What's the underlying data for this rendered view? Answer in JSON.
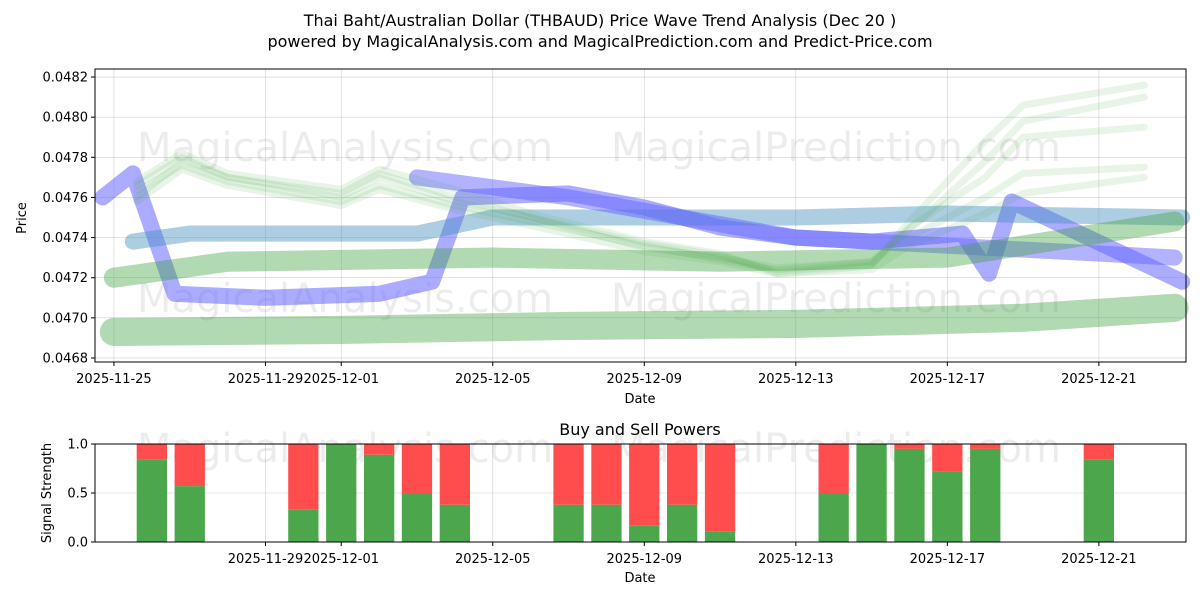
{
  "figure": {
    "title_line1": "Thai Baht/Australian Dollar (THBAUD) Price Wave Trend Analysis (Dec 20 )",
    "title_line2": "powered by MagicalAnalysis.com and MagicalPrediction.com and Predict-Price.com",
    "watermarks": [
      "MagicalAnalysis.com",
      "MagicalPrediction.com"
    ]
  },
  "chart_data": [
    {
      "type": "area",
      "title": "Thai Baht/Australian Dollar (THBAUD) Price Wave Trend Analysis (Dec 20 )",
      "xlabel": "Date",
      "ylabel": "Price",
      "x_range_day": [
        -0.5,
        28.3
      ],
      "ylim": [
        0.04678,
        0.04824
      ],
      "x_ticks": [
        {
          "day": 0,
          "label": "2025-11-25"
        },
        {
          "day": 4,
          "label": "2025-11-29"
        },
        {
          "day": 6,
          "label": "2025-12-01"
        },
        {
          "day": 10,
          "label": "2025-12-05"
        },
        {
          "day": 14,
          "label": "2025-12-09"
        },
        {
          "day": 18,
          "label": "2025-12-13"
        },
        {
          "day": 22,
          "label": "2025-12-17"
        },
        {
          "day": 26,
          "label": "2025-12-21"
        }
      ],
      "y_ticks": [
        {
          "value": 0.0468,
          "label": "0.0468"
        },
        {
          "value": 0.047,
          "label": "0.0470"
        },
        {
          "value": 0.0472,
          "label": "0.0472"
        },
        {
          "value": 0.0474,
          "label": "0.0474"
        },
        {
          "value": 0.0476,
          "label": "0.0476"
        },
        {
          "value": 0.0478,
          "label": "0.0478"
        },
        {
          "value": 0.048,
          "label": "0.0480"
        },
        {
          "value": 0.0482,
          "label": "0.0482"
        }
      ],
      "grid": true,
      "series": [
        {
          "name": "price-wave",
          "color": "#6666ff",
          "opacity": 0.55,
          "width_price": 8e-05,
          "points": [
            [
              -0.3,
              0.0476
            ],
            [
              0.5,
              0.04772
            ],
            [
              1.6,
              0.04712
            ],
            [
              4,
              0.0471
            ],
            [
              7,
              0.04712
            ],
            [
              8.4,
              0.04718
            ],
            [
              9.2,
              0.0476
            ],
            [
              12,
              0.04762
            ],
            [
              14,
              0.04755
            ],
            [
              16,
              0.04745
            ],
            [
              18,
              0.0474
            ],
            [
              20,
              0.04738
            ],
            [
              22.4,
              0.04742
            ],
            [
              23.1,
              0.04722
            ],
            [
              23.7,
              0.04758
            ],
            [
              28.2,
              0.04718
            ]
          ]
        },
        {
          "name": "long-trend",
          "color": "#4a90c0",
          "opacity": 0.45,
          "width_price": 8e-05,
          "points": [
            [
              0.5,
              0.04738
            ],
            [
              2,
              0.04742
            ],
            [
              8,
              0.04742
            ],
            [
              10,
              0.0475
            ],
            [
              14,
              0.0475
            ],
            [
              18,
              0.0475
            ],
            [
              22,
              0.04752
            ],
            [
              28.2,
              0.0475
            ]
          ]
        },
        {
          "name": "down-trend",
          "color": "#6666ff",
          "opacity": 0.5,
          "width_price": 8e-05,
          "points": [
            [
              8,
              0.0477
            ],
            [
              12,
              0.0476
            ],
            [
              18,
              0.0474
            ],
            [
              28,
              0.0473
            ]
          ]
        },
        {
          "name": "band-upper",
          "color": "#3ea33e",
          "opacity": 0.4,
          "width_price": 0.0001,
          "points": [
            [
              0,
              0.0472
            ],
            [
              3,
              0.04728
            ],
            [
              10,
              0.0473
            ],
            [
              16,
              0.04728
            ],
            [
              22,
              0.0473
            ],
            [
              28,
              0.04748
            ]
          ]
        },
        {
          "name": "band-lower",
          "color": "#3ea33e",
          "opacity": 0.4,
          "width_price": 0.00014,
          "points": [
            [
              0,
              0.04693
            ],
            [
              6,
              0.04694
            ],
            [
              12,
              0.04696
            ],
            [
              18,
              0.04697
            ],
            [
              24,
              0.047
            ],
            [
              28,
              0.04705
            ]
          ]
        },
        {
          "name": "green-wave-a",
          "color": "#3ea33e",
          "opacity": 0.12,
          "width_price": 3.5e-05,
          "points": [
            [
              0.6,
              0.04768
            ],
            [
              1.8,
              0.04782
            ],
            [
              3,
              0.04772
            ],
            [
              6,
              0.04764
            ],
            [
              7,
              0.04774
            ],
            [
              9,
              0.04764
            ],
            [
              11,
              0.04752
            ],
            [
              14,
              0.04738
            ],
            [
              16,
              0.04732
            ],
            [
              17.5,
              0.04722
            ],
            [
              20,
              0.04726
            ],
            [
              21,
              0.04748
            ],
            [
              23,
              0.04788
            ],
            [
              24,
              0.04806
            ],
            [
              27.2,
              0.04816
            ]
          ]
        },
        {
          "name": "green-wave-b",
          "color": "#3ea33e",
          "opacity": 0.12,
          "width_price": 3.5e-05,
          "points": [
            [
              0.6,
              0.0476
            ],
            [
              1.8,
              0.04778
            ],
            [
              3,
              0.0477
            ],
            [
              6,
              0.0476
            ],
            [
              7,
              0.0477
            ],
            [
              9,
              0.04758
            ],
            [
              11,
              0.0475
            ],
            [
              14,
              0.04735
            ],
            [
              16,
              0.0473
            ],
            [
              17.5,
              0.04725
            ],
            [
              20,
              0.04728
            ],
            [
              21,
              0.04745
            ],
            [
              23,
              0.0477
            ],
            [
              24,
              0.0479
            ],
            [
              27.2,
              0.04795
            ]
          ]
        },
        {
          "name": "green-wave-c",
          "color": "#3ea33e",
          "opacity": 0.12,
          "width_price": 3.5e-05,
          "points": [
            [
              0.6,
              0.04763
            ],
            [
              1.8,
              0.04776
            ],
            [
              3,
              0.04768
            ],
            [
              6,
              0.04758
            ],
            [
              7,
              0.04766
            ],
            [
              9,
              0.04756
            ],
            [
              11,
              0.04748
            ],
            [
              14,
              0.04736
            ],
            [
              16,
              0.04729
            ],
            [
              17.5,
              0.04724
            ],
            [
              20,
              0.04728
            ],
            [
              21,
              0.0474
            ],
            [
              23,
              0.0476
            ],
            [
              24,
              0.04772
            ],
            [
              27.2,
              0.04775
            ]
          ]
        },
        {
          "name": "green-wave-d",
          "color": "#3ea33e",
          "opacity": 0.12,
          "width_price": 3.5e-05,
          "points": [
            [
              0.6,
              0.04766
            ],
            [
              1.8,
              0.0478
            ],
            [
              3,
              0.0477
            ],
            [
              6,
              0.04762
            ],
            [
              7,
              0.04772
            ],
            [
              9,
              0.0476
            ],
            [
              11,
              0.0475
            ],
            [
              14,
              0.04737
            ],
            [
              16,
              0.04731
            ],
            [
              17.5,
              0.04723
            ],
            [
              20,
              0.04727
            ],
            [
              21,
              0.04744
            ],
            [
              23,
              0.04778
            ],
            [
              24,
              0.04798
            ],
            [
              27.2,
              0.0481
            ]
          ]
        },
        {
          "name": "green-wave-e",
          "color": "#3ea33e",
          "opacity": 0.12,
          "width_price": 3.5e-05,
          "points": [
            [
              0.6,
              0.04758
            ],
            [
              1.8,
              0.04774
            ],
            [
              3,
              0.04766
            ],
            [
              6,
              0.04756
            ],
            [
              7,
              0.04764
            ],
            [
              9,
              0.04754
            ],
            [
              11,
              0.04746
            ],
            [
              14,
              0.04733
            ],
            [
              16,
              0.04728
            ],
            [
              17.5,
              0.04722
            ],
            [
              20,
              0.04724
            ],
            [
              21,
              0.04736
            ],
            [
              23,
              0.04752
            ],
            [
              24,
              0.04762
            ],
            [
              27.2,
              0.0477
            ]
          ]
        }
      ]
    },
    {
      "type": "bar",
      "title": "Buy and Sell Powers",
      "xlabel": "Date",
      "ylabel": "Signal Strength",
      "ylim": [
        0,
        1.0
      ],
      "y_ticks": [
        {
          "value": 0.0,
          "label": "0.0"
        },
        {
          "value": 0.5,
          "label": "0.5"
        },
        {
          "value": 1.0,
          "label": "1.0"
        }
      ],
      "x_ticks": [
        {
          "day": 4,
          "label": "2025-11-29"
        },
        {
          "day": 6,
          "label": "2025-12-01"
        },
        {
          "day": 10,
          "label": "2025-12-05"
        },
        {
          "day": 14,
          "label": "2025-12-09"
        },
        {
          "day": 18,
          "label": "2025-12-13"
        },
        {
          "day": 22,
          "label": "2025-12-17"
        },
        {
          "day": 26,
          "label": "2025-12-21"
        }
      ],
      "buy_color": "#4ca64c",
      "sell_color": "#ff4c4c",
      "bars": [
        {
          "day": 1,
          "buy": 0.84
        },
        {
          "day": 2,
          "buy": 0.57
        },
        {
          "day": 5,
          "buy": 0.33
        },
        {
          "day": 6,
          "buy": 1.0
        },
        {
          "day": 7,
          "buy": 0.89
        },
        {
          "day": 8,
          "buy": 0.5
        },
        {
          "day": 9,
          "buy": 0.38
        },
        {
          "day": 12,
          "buy": 0.38
        },
        {
          "day": 13,
          "buy": 0.38
        },
        {
          "day": 14,
          "buy": 0.17
        },
        {
          "day": 15,
          "buy": 0.38
        },
        {
          "day": 16,
          "buy": 0.11
        },
        {
          "day": 19,
          "buy": 0.5
        },
        {
          "day": 20,
          "buy": 1.0
        },
        {
          "day": 21,
          "buy": 0.95
        },
        {
          "day": 22,
          "buy": 0.72
        },
        {
          "day": 23,
          "buy": 0.95
        },
        {
          "day": 26,
          "buy": 0.84
        }
      ]
    }
  ]
}
